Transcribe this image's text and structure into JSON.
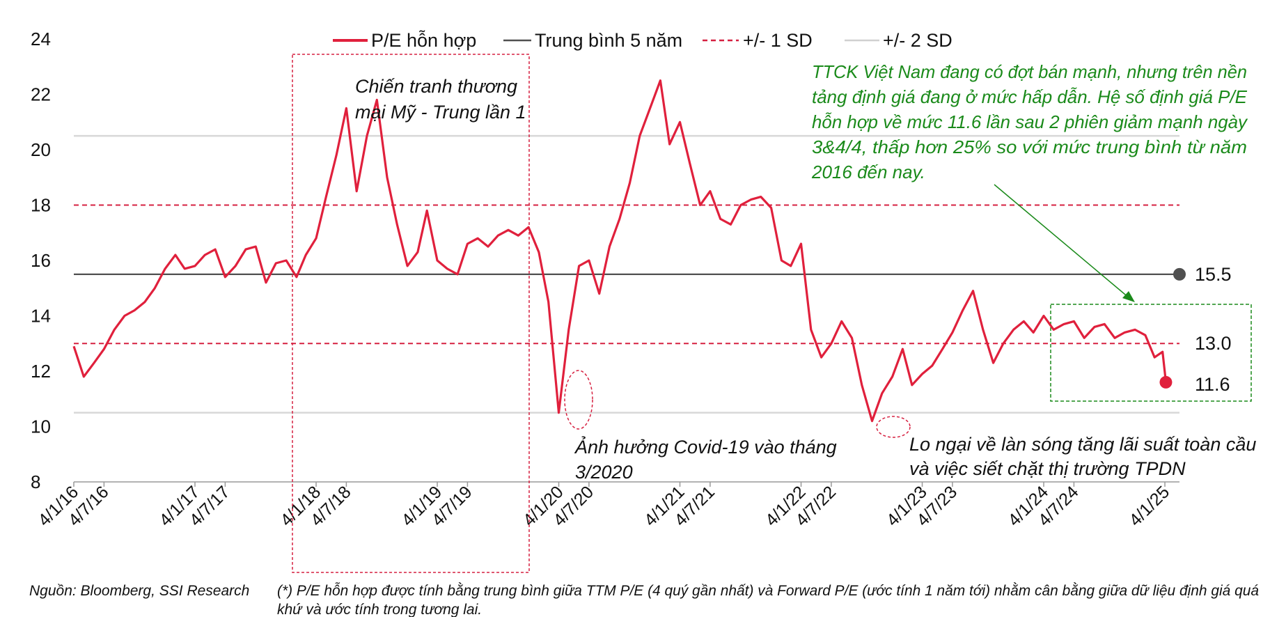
{
  "chart_data": {
    "type": "line",
    "title": "",
    "xlabel": "",
    "ylabel": "",
    "ylim": [
      8,
      24
    ],
    "yticks": [
      "8",
      "10",
      "12",
      "14",
      "16",
      "18",
      "20",
      "22",
      "24"
    ],
    "x_tick_labels": [
      "4/1/16",
      "4/7/16",
      "4/1/17",
      "4/7/17",
      "4/1/18",
      "4/7/18",
      "4/1/19",
      "4/7/19",
      "4/1/20",
      "4/7/20",
      "4/1/21",
      "4/7/21",
      "4/1/22",
      "4/7/22",
      "4/1/23",
      "4/7/23",
      "4/1/24",
      "4/7/24",
      "4/1/25"
    ],
    "legend": {
      "placement": "top",
      "entries": [
        "P/E hỗn hợp",
        "Trung bình 5 năm",
        "+/- 1 SD",
        "+/- 2 SD"
      ]
    },
    "grid": false,
    "colors": {
      "series": "#e0203c",
      "mean": "#505050",
      "sd1": "#d62040",
      "sd2": "#d8d8d8",
      "green": "#1a8a1a"
    },
    "reference_lines": {
      "mean": 15.5,
      "sd1_upper": 18.0,
      "sd1_lower": 13.0,
      "sd2_upper": 20.5,
      "sd2_lower": 10.5
    },
    "series": [
      {
        "name": "P/E hỗn hợp",
        "points": [
          [
            "2016-04-01",
            12.9
          ],
          [
            "2016-05-01",
            11.8
          ],
          [
            "2016-06-01",
            12.3
          ],
          [
            "2016-07-01",
            12.8
          ],
          [
            "2016-08-01",
            13.5
          ],
          [
            "2016-09-01",
            14.0
          ],
          [
            "2016-10-01",
            14.2
          ],
          [
            "2016-11-01",
            14.5
          ],
          [
            "2016-12-01",
            15.0
          ],
          [
            "2017-01-01",
            15.7
          ],
          [
            "2017-02-01",
            16.2
          ],
          [
            "2017-03-01",
            15.7
          ],
          [
            "2017-04-01",
            15.8
          ],
          [
            "2017-05-01",
            16.2
          ],
          [
            "2017-06-01",
            16.4
          ],
          [
            "2017-07-01",
            15.4
          ],
          [
            "2017-08-01",
            15.8
          ],
          [
            "2017-09-01",
            16.4
          ],
          [
            "2017-10-01",
            16.5
          ],
          [
            "2017-11-01",
            15.2
          ],
          [
            "2017-12-01",
            15.9
          ],
          [
            "2018-01-01",
            16.0
          ],
          [
            "2018-02-01",
            15.4
          ],
          [
            "2018-03-01",
            16.2
          ],
          [
            "2018-04-01",
            16.8
          ],
          [
            "2018-05-01",
            18.3
          ],
          [
            "2018-06-01",
            19.8
          ],
          [
            "2018-07-01",
            21.5
          ],
          [
            "2018-08-01",
            18.5
          ],
          [
            "2018-09-01",
            20.5
          ],
          [
            "2018-10-01",
            21.8
          ],
          [
            "2018-11-01",
            19.0
          ],
          [
            "2018-12-01",
            17.3
          ],
          [
            "2019-01-01",
            15.8
          ],
          [
            "2019-02-01",
            16.3
          ],
          [
            "2019-03-01",
            17.8
          ],
          [
            "2019-04-01",
            16.0
          ],
          [
            "2019-05-01",
            15.7
          ],
          [
            "2019-06-01",
            15.5
          ],
          [
            "2019-07-01",
            16.6
          ],
          [
            "2019-08-01",
            16.8
          ],
          [
            "2019-09-01",
            16.5
          ],
          [
            "2019-10-01",
            16.9
          ],
          [
            "2019-11-01",
            17.1
          ],
          [
            "2019-12-01",
            16.9
          ],
          [
            "2020-01-01",
            17.2
          ],
          [
            "2020-02-01",
            16.3
          ],
          [
            "2020-03-01",
            14.5
          ],
          [
            "2020-04-01",
            10.5
          ],
          [
            "2020-05-01",
            13.5
          ],
          [
            "2020-06-01",
            15.8
          ],
          [
            "2020-07-01",
            16.0
          ],
          [
            "2020-08-01",
            14.8
          ],
          [
            "2020-09-01",
            16.5
          ],
          [
            "2020-10-01",
            17.5
          ],
          [
            "2020-11-01",
            18.8
          ],
          [
            "2020-12-01",
            20.5
          ],
          [
            "2021-01-01",
            21.5
          ],
          [
            "2021-02-01",
            22.5
          ],
          [
            "2021-03-01",
            20.2
          ],
          [
            "2021-04-01",
            21.0
          ],
          [
            "2021-05-01",
            19.5
          ],
          [
            "2021-06-01",
            18.0
          ],
          [
            "2021-07-01",
            18.5
          ],
          [
            "2021-08-01",
            17.5
          ],
          [
            "2021-09-01",
            17.3
          ],
          [
            "2021-10-01",
            18.0
          ],
          [
            "2021-11-01",
            18.2
          ],
          [
            "2021-12-01",
            18.3
          ],
          [
            "2022-01-01",
            17.9
          ],
          [
            "2022-02-01",
            16.0
          ],
          [
            "2022-03-01",
            15.8
          ],
          [
            "2022-04-01",
            16.6
          ],
          [
            "2022-05-01",
            13.5
          ],
          [
            "2022-06-01",
            12.5
          ],
          [
            "2022-07-01",
            13.0
          ],
          [
            "2022-08-01",
            13.8
          ],
          [
            "2022-09-01",
            13.2
          ],
          [
            "2022-10-01",
            11.5
          ],
          [
            "2022-11-01",
            10.2
          ],
          [
            "2022-12-01",
            11.2
          ],
          [
            "2023-01-01",
            11.8
          ],
          [
            "2023-02-01",
            12.8
          ],
          [
            "2023-03-01",
            11.5
          ],
          [
            "2023-04-01",
            11.9
          ],
          [
            "2023-05-01",
            12.2
          ],
          [
            "2023-06-01",
            12.8
          ],
          [
            "2023-07-01",
            13.4
          ],
          [
            "2023-08-01",
            14.2
          ],
          [
            "2023-09-01",
            14.9
          ],
          [
            "2023-10-01",
            13.5
          ],
          [
            "2023-11-01",
            12.3
          ],
          [
            "2023-12-01",
            13.0
          ],
          [
            "2024-01-01",
            13.5
          ],
          [
            "2024-02-01",
            13.8
          ],
          [
            "2024-03-01",
            13.4
          ],
          [
            "2024-04-01",
            14.0
          ],
          [
            "2024-05-01",
            13.5
          ],
          [
            "2024-06-01",
            13.7
          ],
          [
            "2024-07-01",
            13.8
          ],
          [
            "2024-08-01",
            13.2
          ],
          [
            "2024-09-01",
            13.6
          ],
          [
            "2024-10-01",
            13.7
          ],
          [
            "2024-11-01",
            13.2
          ],
          [
            "2024-12-01",
            13.4
          ],
          [
            "2025-01-01",
            13.5
          ],
          [
            "2025-02-01",
            13.3
          ],
          [
            "2025-03-01",
            12.5
          ],
          [
            "2025-03-25",
            12.7
          ],
          [
            "2025-04-04",
            11.6
          ]
        ]
      }
    ],
    "end_labels": [
      "15.5",
      "13.0",
      "11.6"
    ],
    "annotations": {
      "trade_war": [
        "Chiến tranh thương",
        "mại Mỹ - Trung lần 1"
      ],
      "covid": [
        "Ảnh hưởng Covid-19 vào tháng",
        "3/2020"
      ],
      "rates": [
        "Lo ngại về làn sóng tăng lãi suất toàn cầu",
        "và việc siết chặt thị trường TPDN"
      ],
      "comment": [
        "TTCK Việt Nam đang có đợt bán mạnh, nhưng trên nền",
        "tảng định giá đang ở mức hấp dẫn. Hệ số định giá P/E",
        "hỗn hợp về mức 11.6 lần sau 2 phiên giảm mạnh ngày",
        "3&4/4, thấp hơn 25% so với mức trung bình từ năm",
        "2016 đến nay."
      ]
    }
  },
  "footer": {
    "source": "Nguồn: Bloomberg, SSI Research",
    "note_line1": "(*) P/E hỗn hợp được tính bằng trung bình giữa TTM P/E (4 quý gần nhất) và Forward P/E (ước tính 1 năm tới) nhằm cân bằng giữa dữ liệu định giá quá",
    "note_line2": "khứ và ước tính trong tương lai."
  }
}
